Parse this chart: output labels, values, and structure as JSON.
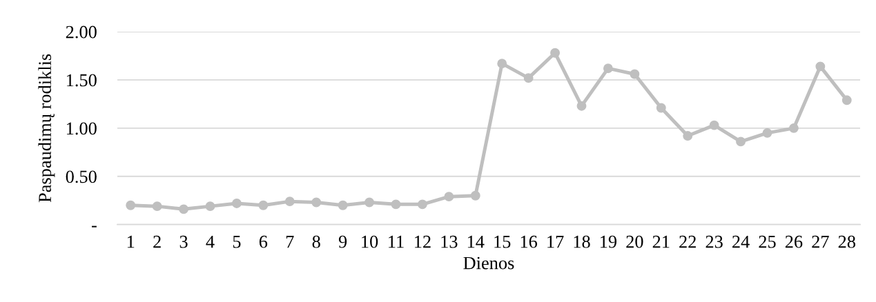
{
  "chart_data": {
    "type": "line",
    "xlabel": "Dienos",
    "ylabel": "Paspaudimų rodiklis",
    "categories": [
      "1",
      "2",
      "3",
      "4",
      "5",
      "6",
      "7",
      "8",
      "9",
      "10",
      "11",
      "12",
      "13",
      "14",
      "15",
      "16",
      "17",
      "18",
      "19",
      "20",
      "21",
      "22",
      "23",
      "24",
      "25",
      "26",
      "27",
      "28"
    ],
    "series": [
      {
        "color": "#bfbfbf",
        "values": [
          0.2,
          0.19,
          0.16,
          0.19,
          0.22,
          0.2,
          0.24,
          0.23,
          0.2,
          0.23,
          0.21,
          0.21,
          0.29,
          0.3,
          1.67,
          1.52,
          1.78,
          1.23,
          1.62,
          1.56,
          1.21,
          0.92,
          1.03,
          0.86,
          0.95,
          1.0,
          1.64,
          1.29
        ]
      }
    ],
    "ylim": [
      0,
      2
    ],
    "yticks": [
      {
        "value": 0,
        "label": "-"
      },
      {
        "value": 0.5,
        "label": "0.50"
      },
      {
        "value": 1.0,
        "label": "1.00"
      },
      {
        "value": 1.5,
        "label": "1.50"
      },
      {
        "value": 2.0,
        "label": "2.00"
      }
    ],
    "grid": "y",
    "marker": "circle",
    "line_style": "solid"
  }
}
